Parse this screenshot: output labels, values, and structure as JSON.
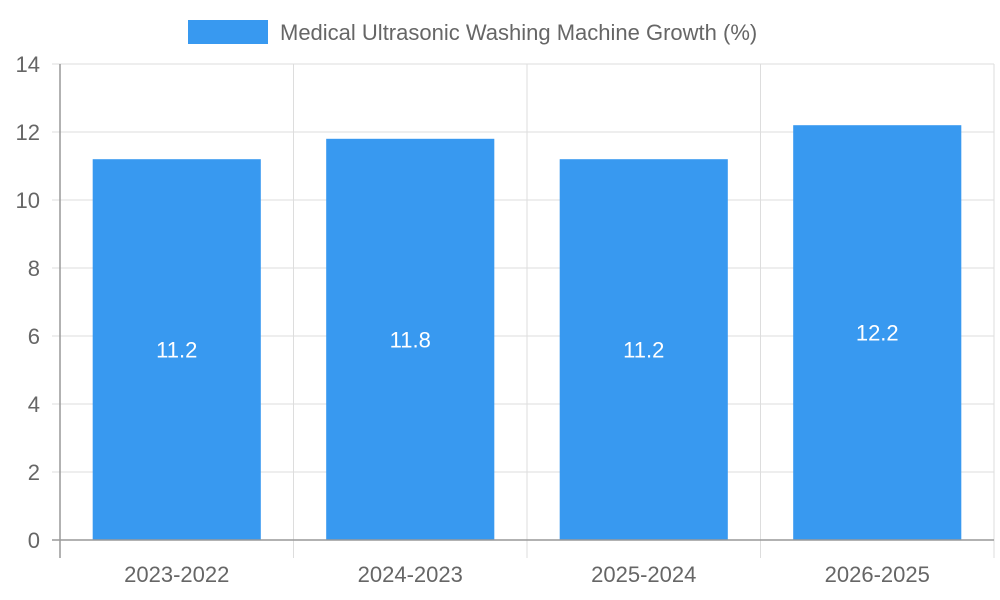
{
  "chart_data": {
    "type": "bar",
    "categories": [
      "2023-2022",
      "2024-2023",
      "2025-2024",
      "2026-2025"
    ],
    "series": [
      {
        "name": "Medical Ultrasonic Washing Machine Growth (%)",
        "values": [
          11.2,
          11.8,
          11.2,
          12.2
        ],
        "color": "#3899f0"
      }
    ],
    "data_labels": [
      "11.2",
      "11.8",
      "11.2",
      "12.2"
    ],
    "ylim": [
      0,
      14
    ],
    "yticks": [
      0,
      2,
      4,
      6,
      8,
      10,
      12,
      14
    ],
    "ytick_labels": [
      "0",
      "2",
      "4",
      "6",
      "8",
      "10",
      "12",
      "14"
    ],
    "grid": true,
    "legend_position": "top-center",
    "colors": {
      "gridline": "#dddddd",
      "axis": "#999999",
      "text": "#666666",
      "label": "#ffffff"
    }
  }
}
